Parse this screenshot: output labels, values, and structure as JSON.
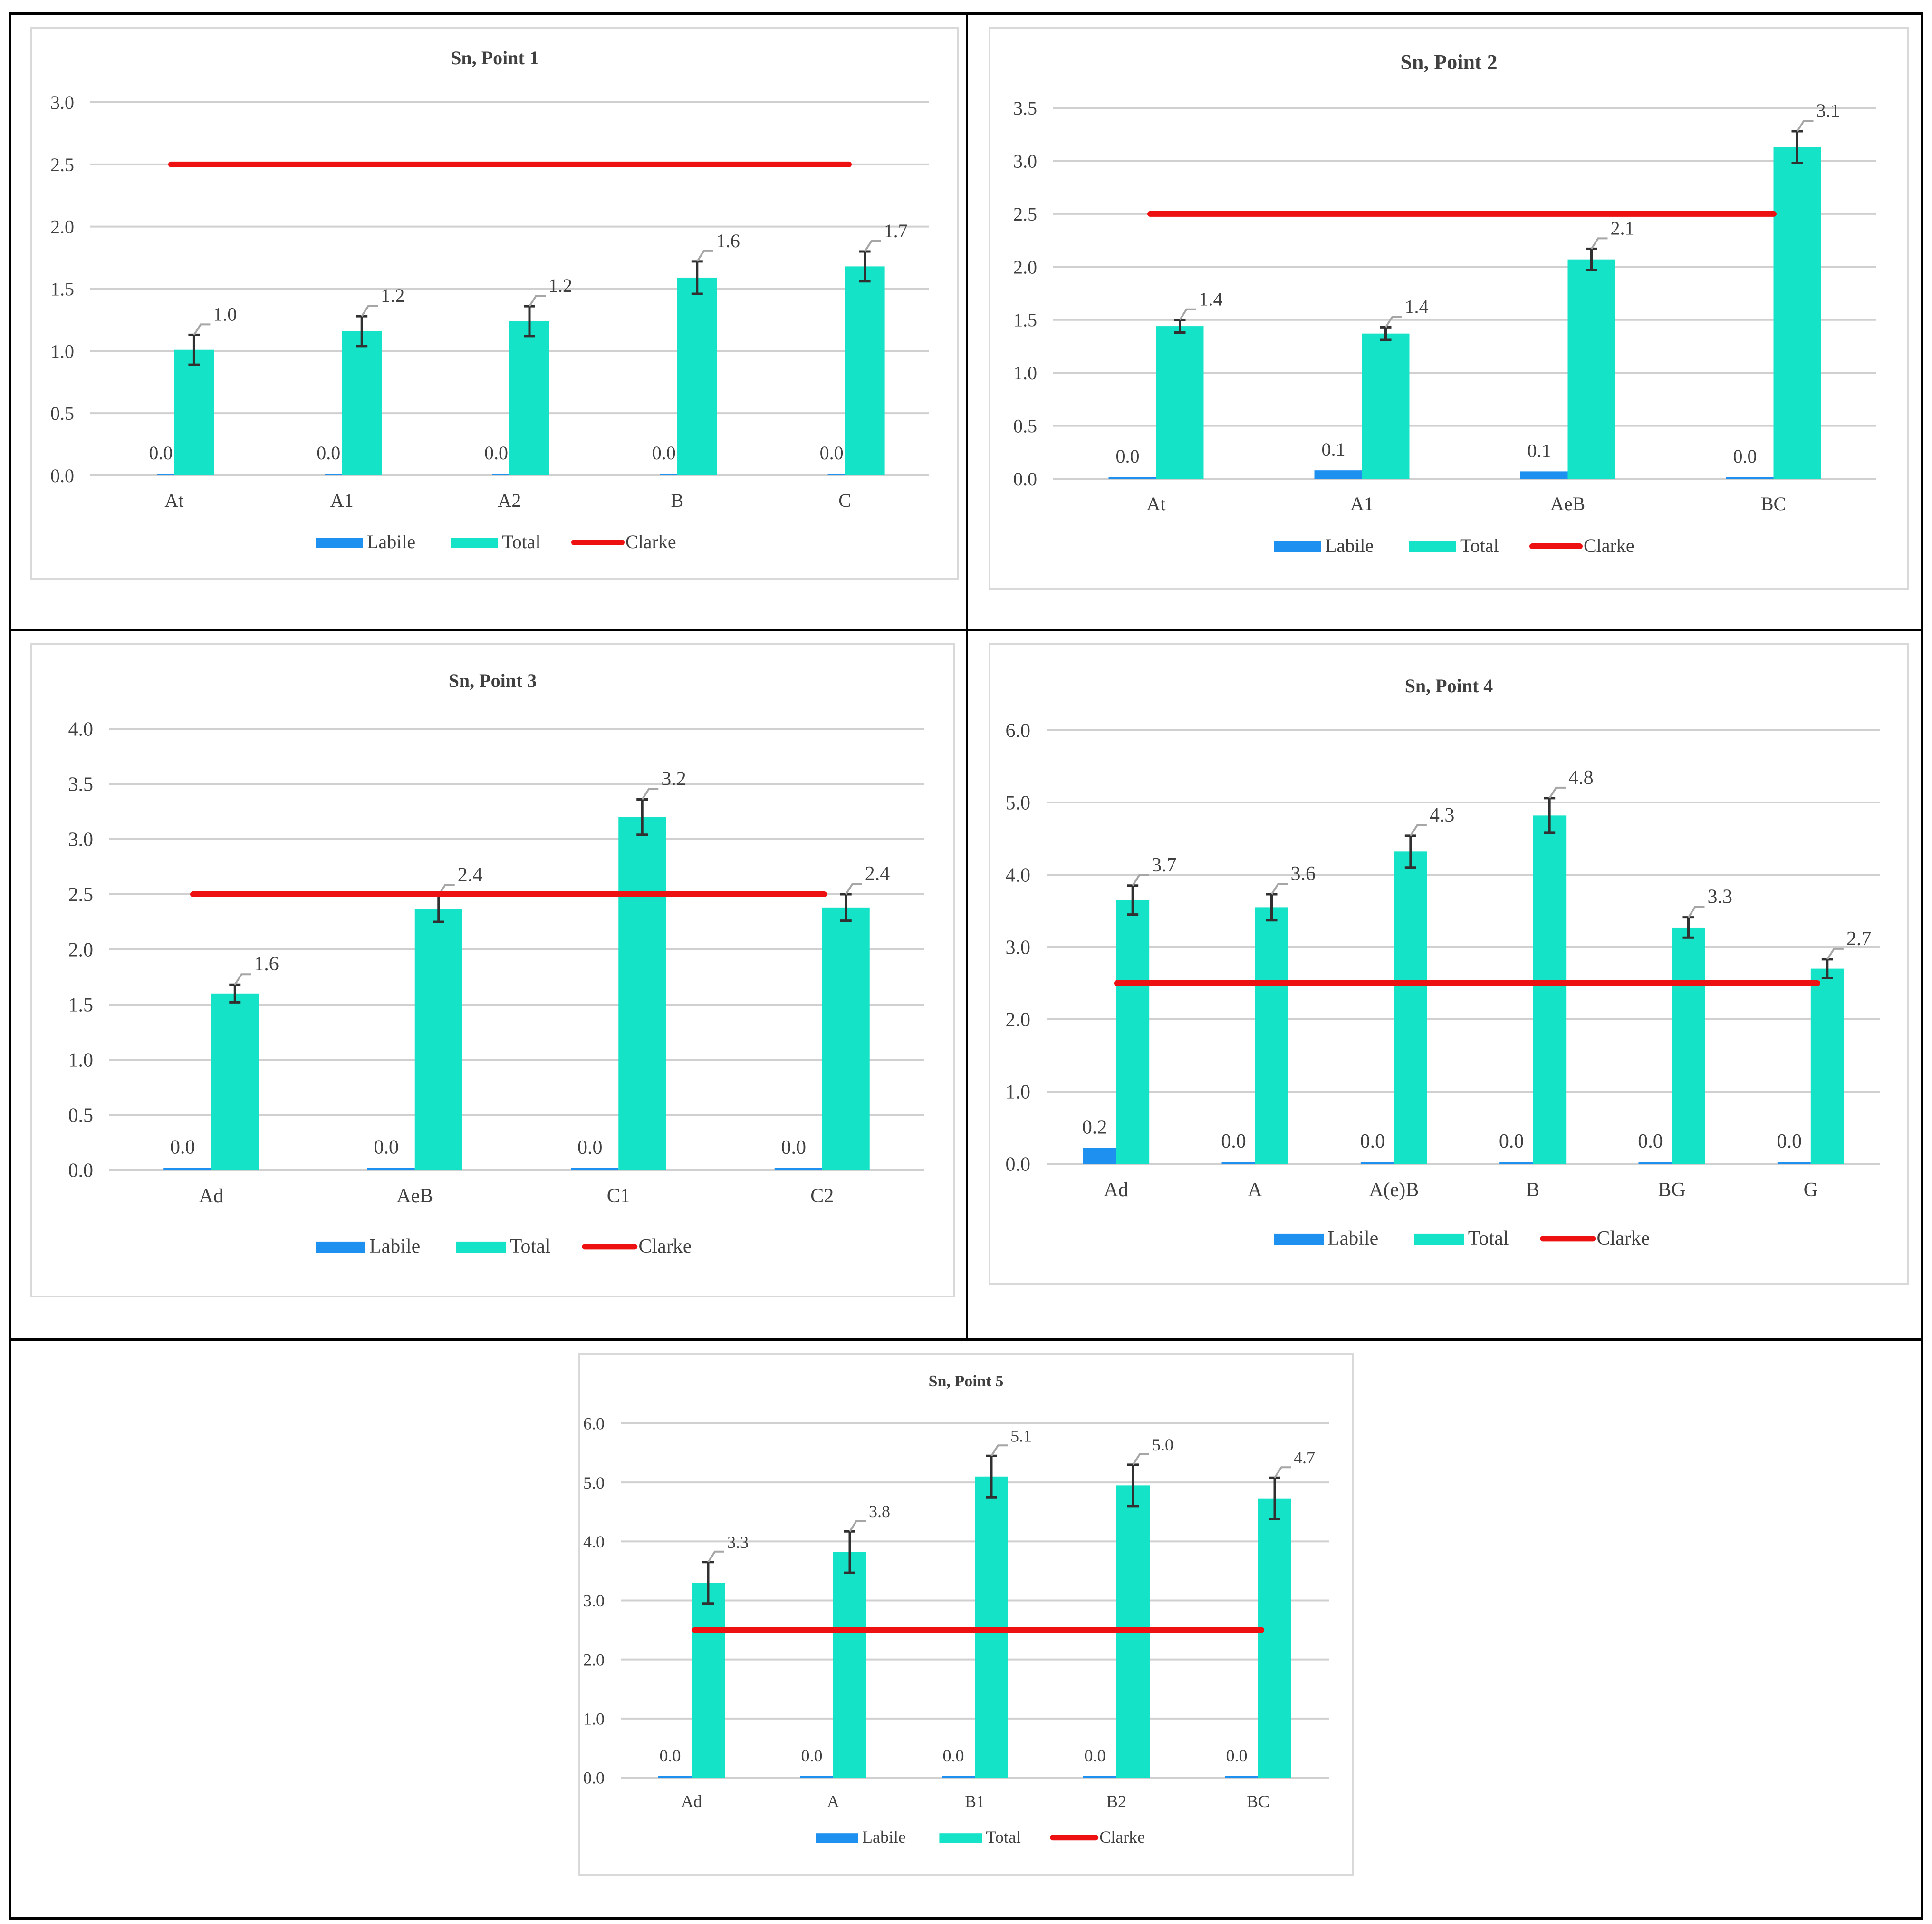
{
  "colors": {
    "labile": "#1e90f0",
    "total": "#14e3c8",
    "clarke": "#ee1111",
    "grid": "#d0d0d0",
    "axis_text": "#404040",
    "leader": "#a6a6a6",
    "error_bar": "#303030"
  },
  "legend": {
    "labile": "Labile",
    "total": "Total",
    "clarke": "Clarke"
  },
  "chart_data": [
    {
      "type": "bar",
      "title": "Sn, Point 1",
      "categories": [
        "At",
        "A1",
        "A2",
        "B",
        "C"
      ],
      "ylim": [
        0,
        3.0
      ],
      "yticks": [
        0.0,
        0.5,
        1.0,
        1.5,
        2.0,
        2.5,
        3.0
      ],
      "series": [
        {
          "name": "Labile",
          "values": [
            0.0,
            0.0,
            0.0,
            0.0,
            0.0
          ],
          "labels": [
            "0.0",
            "0.0",
            "0.0",
            "0.0",
            "0.0"
          ]
        },
        {
          "name": "Total",
          "values": [
            1.01,
            1.16,
            1.24,
            1.59,
            1.68
          ],
          "labels": [
            "1.0",
            "1.2",
            "1.2",
            "1.6",
            "1.7"
          ],
          "errors": [
            0.12,
            0.12,
            0.12,
            0.13,
            0.12
          ]
        }
      ],
      "clarke": 2.5,
      "grid": true,
      "legend_position": "bottom"
    },
    {
      "type": "bar",
      "title": "Sn, Point  2",
      "categories": [
        "At",
        "A1",
        "AeB",
        "BC"
      ],
      "ylim": [
        0,
        3.5
      ],
      "yticks": [
        0.0,
        0.5,
        1.0,
        1.5,
        2.0,
        2.5,
        3.0,
        3.5
      ],
      "series": [
        {
          "name": "Labile",
          "values": [
            0.0,
            0.08,
            0.07,
            0.0
          ],
          "labels": [
            "0.0",
            "0.1",
            "0.1",
            "0.0"
          ]
        },
        {
          "name": "Total",
          "values": [
            1.44,
            1.37,
            2.07,
            3.13
          ],
          "labels": [
            "1.4",
            "1.4",
            "2.1",
            "3.1"
          ],
          "errors": [
            0.06,
            0.06,
            0.1,
            0.15
          ]
        }
      ],
      "clarke": 2.5,
      "grid": true,
      "legend_position": "bottom"
    },
    {
      "type": "bar",
      "title": "Sn, Point 3",
      "categories": [
        "Ad",
        "AeB",
        "C1",
        "C2"
      ],
      "ylim": [
        0,
        4.0
      ],
      "yticks": [
        0.0,
        0.5,
        1.0,
        1.5,
        2.0,
        2.5,
        3.0,
        3.5,
        4.0
      ],
      "series": [
        {
          "name": "Labile",
          "values": [
            0.02,
            0.02,
            0.0,
            0.0
          ],
          "labels": [
            "0.0",
            "0.0",
            "0.0",
            "0.0"
          ]
        },
        {
          "name": "Total",
          "values": [
            1.6,
            2.37,
            3.2,
            2.38
          ],
          "labels": [
            "1.6",
            "2.4",
            "3.2",
            "2.4"
          ],
          "errors": [
            0.08,
            0.12,
            0.16,
            0.12
          ]
        }
      ],
      "clarke": 2.5,
      "grid": true,
      "legend_position": "bottom"
    },
    {
      "type": "bar",
      "title": "Sn, Point 4",
      "categories": [
        "Ad",
        "A",
        "A(e)B",
        "B",
        "BG",
        "G"
      ],
      "ylim": [
        0,
        6.0
      ],
      "yticks": [
        0.0,
        1.0,
        2.0,
        3.0,
        4.0,
        5.0,
        6.0
      ],
      "series": [
        {
          "name": "Labile",
          "values": [
            0.22,
            0.0,
            0.0,
            0.0,
            0.0,
            0.0
          ],
          "labels": [
            "0.2",
            "0.0",
            "0.0",
            "0.0",
            "0.0",
            "0.0"
          ]
        },
        {
          "name": "Total",
          "values": [
            3.65,
            3.55,
            4.32,
            4.82,
            3.27,
            2.7
          ],
          "labels": [
            "3.7",
            "3.6",
            "4.3",
            "4.8",
            "3.3",
            "2.7"
          ],
          "errors": [
            0.2,
            0.18,
            0.22,
            0.24,
            0.14,
            0.13
          ]
        }
      ],
      "clarke": 2.5,
      "grid": true,
      "legend_position": "bottom"
    },
    {
      "type": "bar",
      "title": "Sn, Point 5",
      "categories": [
        "Ad",
        "A",
        "B1",
        "B2",
        "BC"
      ],
      "ylim": [
        0,
        6.0
      ],
      "yticks": [
        0.0,
        1.0,
        2.0,
        3.0,
        4.0,
        5.0,
        6.0
      ],
      "series": [
        {
          "name": "Labile",
          "values": [
            0.0,
            0.0,
            0.0,
            0.0,
            0.0
          ],
          "labels": [
            "0.0",
            "0.0",
            "0.0",
            "0.0",
            "0.0"
          ]
        },
        {
          "name": "Total",
          "values": [
            3.3,
            3.82,
            5.1,
            4.95,
            4.73
          ],
          "labels": [
            "3.3",
            "3.8",
            "5.1",
            "5.0",
            "4.7"
          ],
          "errors": [
            0.35,
            0.35,
            0.35,
            0.35,
            0.35
          ]
        }
      ],
      "clarke": 2.5,
      "grid": true,
      "legend_position": "bottom"
    }
  ]
}
